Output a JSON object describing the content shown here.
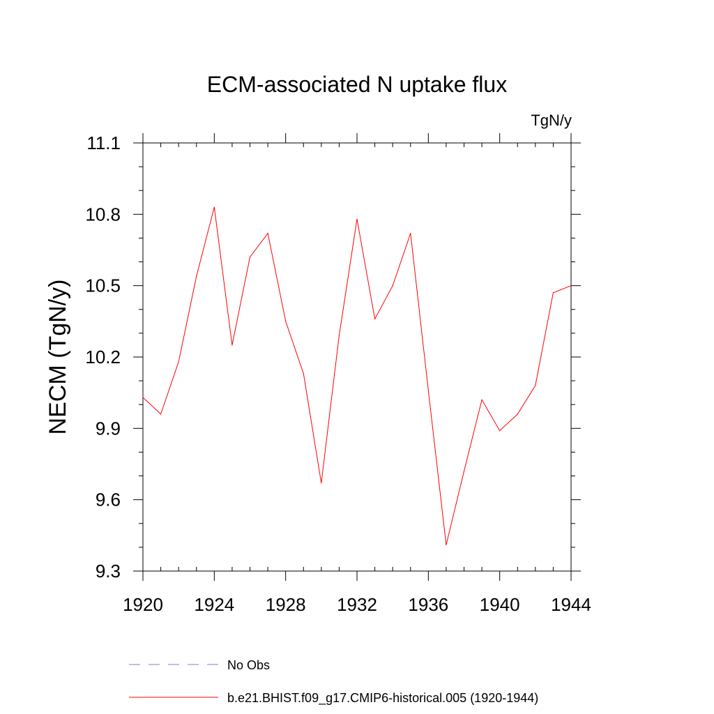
{
  "chart_data": {
    "type": "line",
    "title": "ECM-associated N uptake flux",
    "units_label": "TgN/y",
    "ylabel": "NECM  (TgN/y)",
    "xlabel": "",
    "xlim": [
      1920,
      1944
    ],
    "ylim": [
      9.3,
      11.1
    ],
    "x_ticks": [
      "1920",
      "1924",
      "1928",
      "1932",
      "1936",
      "1940",
      "1944"
    ],
    "y_ticks": [
      "9.3",
      "9.6",
      "9.9",
      "10.2",
      "10.5",
      "10.8",
      "11.1"
    ],
    "x_tick_values": [
      1920,
      1924,
      1928,
      1932,
      1936,
      1940,
      1944
    ],
    "y_tick_values": [
      9.3,
      9.6,
      9.9,
      10.2,
      10.5,
      10.8,
      11.1
    ],
    "x_minor_step": 1,
    "y_minor_step": 0.1,
    "grid": false,
    "legend_position": "bottom",
    "series": [
      {
        "name": "b.e21.BHIST.f09_g17.CMIP6-historical.005 (1920-1944)",
        "color": "#ff0000",
        "style": "solid",
        "x": [
          1920,
          1921,
          1922,
          1923,
          1924,
          1925,
          1926,
          1927,
          1928,
          1929,
          1930,
          1931,
          1932,
          1933,
          1934,
          1935,
          1936,
          1937,
          1938,
          1939,
          1940,
          1941,
          1942,
          1943,
          1944
        ],
        "y": [
          10.03,
          9.96,
          10.18,
          10.54,
          10.83,
          10.25,
          10.62,
          10.72,
          10.35,
          10.13,
          9.67,
          10.29,
          10.78,
          10.36,
          10.5,
          10.72,
          10.06,
          9.41,
          9.72,
          10.02,
          9.89,
          9.96,
          10.08,
          10.47,
          10.5
        ]
      }
    ],
    "legend": [
      {
        "label": "No Obs",
        "color": "#8080c0",
        "style": "dashed"
      },
      {
        "label": "b.e21.BHIST.f09_g17.CMIP6-historical.005 (1920-1944)",
        "color": "#ff0000",
        "style": "solid"
      }
    ]
  }
}
